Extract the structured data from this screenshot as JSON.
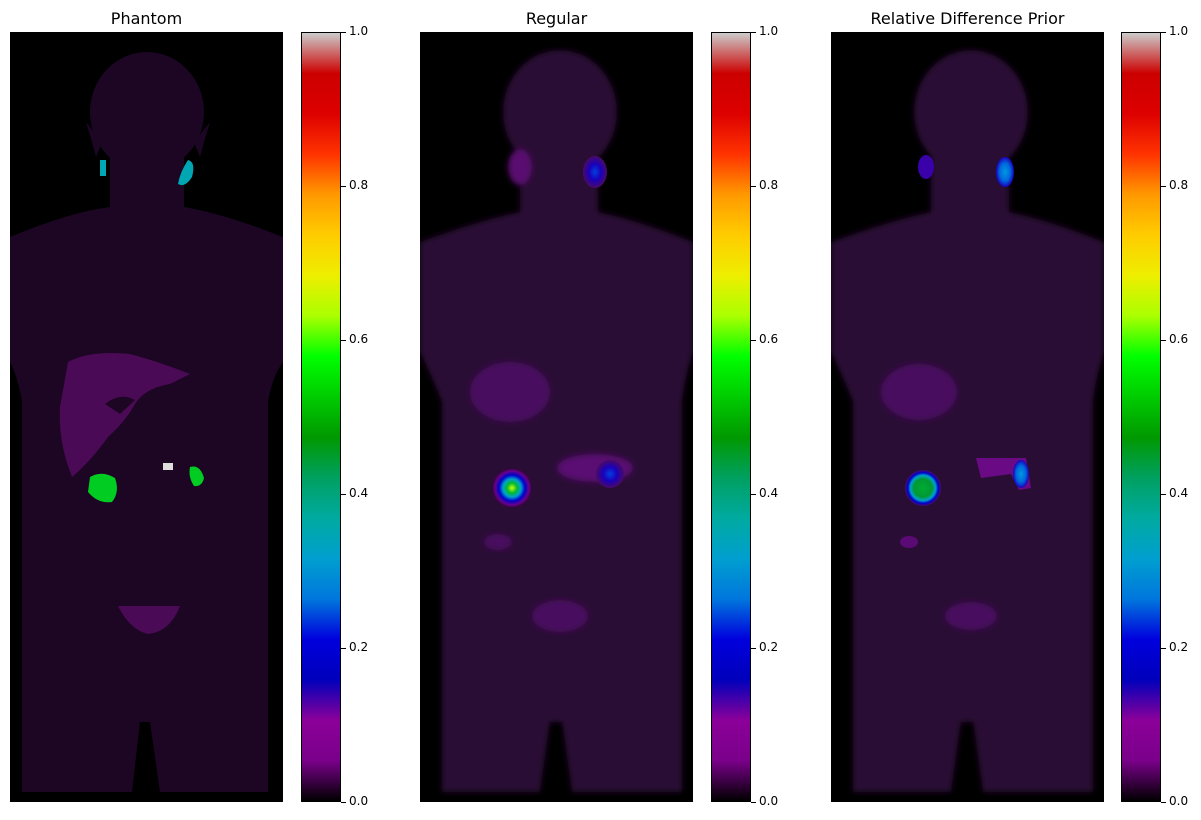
{
  "panels": [
    {
      "title": "Phantom"
    },
    {
      "title": "Regular"
    },
    {
      "title": "Relative Difference Prior"
    }
  ],
  "colorbar": {
    "colormap": "nipy_spectral",
    "ticks": [
      "0.0",
      "0.2",
      "0.4",
      "0.6",
      "0.8",
      "1.0"
    ],
    "stops": [
      "#000000",
      "#7a008a",
      "#8b0099",
      "#0000bb",
      "#0000dd",
      "#0077dd",
      "#009fcf",
      "#00aaa0",
      "#00a060",
      "#009900",
      "#00cc00",
      "#00ff00",
      "#aaff00",
      "#eeee00",
      "#ffcc00",
      "#ff9900",
      "#ff3300",
      "#dd0000",
      "#cc0000",
      "#cccccc"
    ]
  }
}
